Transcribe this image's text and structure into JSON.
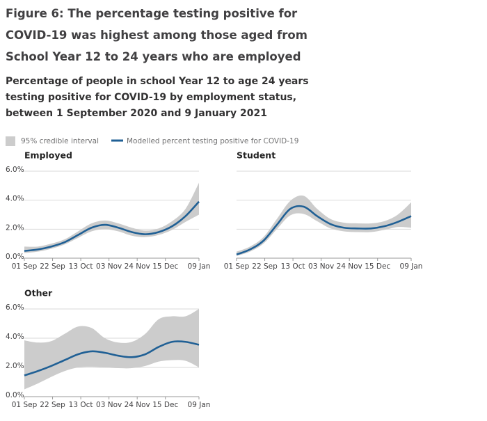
{
  "title": "Figure 6: The percentage testing positive for COVID-19 was highest among those aged from School Year 12 to 24 years who are employed",
  "subtitle": "Percentage of people in school Year 12 to age 24 years testing positive for COVID-19 by employment status, between 1 September 2020 and 9 January 2021",
  "legend": [
    {
      "name": "95% credible interval",
      "color": "#cccccc"
    },
    {
      "name": "Modelled percent testing positive for COVID-19",
      "color": "#206095"
    }
  ],
  "chart_data": [
    {
      "type": "line",
      "title": "Employed",
      "x": [
        0,
        10,
        20,
        30,
        40,
        50,
        60,
        70,
        80,
        90,
        100,
        110,
        120,
        130
      ],
      "values": [
        0.5,
        0.6,
        0.8,
        1.1,
        1.6,
        2.1,
        2.3,
        2.1,
        1.8,
        1.65,
        1.8,
        2.2,
        2.9,
        3.9
      ],
      "lower": [
        0.35,
        0.45,
        0.65,
        0.95,
        1.4,
        1.85,
        2.0,
        1.85,
        1.55,
        1.45,
        1.6,
        1.95,
        2.5,
        3.0
      ],
      "upper": [
        0.8,
        0.8,
        1.0,
        1.3,
        1.85,
        2.4,
        2.6,
        2.4,
        2.1,
        1.9,
        2.05,
        2.55,
        3.4,
        5.2
      ],
      "xlim": [
        0,
        130
      ],
      "xticks": [
        {
          "value": 0,
          "label": "01 Sep"
        },
        {
          "value": 21,
          "label": "22 Sep"
        },
        {
          "value": 42,
          "label": "13 Oct"
        },
        {
          "value": 63,
          "label": "03 Nov"
        },
        {
          "value": 84,
          "label": "24 Nov"
        },
        {
          "value": 105,
          "label": "15 Dec"
        },
        {
          "value": 130,
          "label": "09 Jan"
        }
      ],
      "ylim": [
        0,
        6
      ],
      "yticks": [
        {
          "value": 0,
          "label": "0.0%"
        },
        {
          "value": 2,
          "label": "2.0%"
        },
        {
          "value": 4,
          "label": "4.0%"
        },
        {
          "value": 6,
          "label": "6.0%"
        }
      ],
      "ytick_labels": true,
      "grid": true
    },
    {
      "type": "line",
      "title": "Student",
      "x": [
        0,
        10,
        20,
        30,
        40,
        50,
        60,
        70,
        80,
        90,
        100,
        110,
        120,
        130
      ],
      "values": [
        0.25,
        0.6,
        1.2,
        2.3,
        3.4,
        3.55,
        2.9,
        2.35,
        2.1,
        2.05,
        2.05,
        2.2,
        2.5,
        2.9
      ],
      "lower": [
        0.15,
        0.45,
        1.0,
        2.0,
        2.95,
        3.05,
        2.55,
        2.05,
        1.85,
        1.8,
        1.8,
        1.95,
        2.15,
        2.1
      ],
      "upper": [
        0.45,
        0.8,
        1.45,
        2.7,
        3.95,
        4.3,
        3.4,
        2.7,
        2.45,
        2.4,
        2.4,
        2.55,
        3.0,
        3.85
      ],
      "xlim": [
        0,
        130
      ],
      "xticks": [
        {
          "value": 0,
          "label": "01 Sep"
        },
        {
          "value": 21,
          "label": "22 Sep"
        },
        {
          "value": 42,
          "label": "13 Oct"
        },
        {
          "value": 63,
          "label": "03 Nov"
        },
        {
          "value": 84,
          "label": "24 Nov"
        },
        {
          "value": 105,
          "label": "15 Dec"
        },
        {
          "value": 130,
          "label": "09 Jan"
        }
      ],
      "ylim": [
        0,
        6
      ],
      "yticks": [
        {
          "value": 0,
          "label": "0.0%"
        },
        {
          "value": 2,
          "label": "2.0%"
        },
        {
          "value": 4,
          "label": "4.0%"
        },
        {
          "value": 6,
          "label": "6.0%"
        }
      ],
      "ytick_labels": false,
      "grid": true
    },
    {
      "type": "line",
      "title": "Other",
      "x": [
        0,
        10,
        20,
        30,
        40,
        50,
        60,
        70,
        80,
        90,
        100,
        110,
        120,
        130
      ],
      "values": [
        1.45,
        1.75,
        2.1,
        2.5,
        2.9,
        3.1,
        3.0,
        2.8,
        2.7,
        2.9,
        3.4,
        3.75,
        3.75,
        3.55
      ],
      "lower": [
        0.5,
        0.9,
        1.35,
        1.75,
        2.0,
        2.05,
        2.0,
        1.95,
        1.95,
        2.1,
        2.4,
        2.5,
        2.45,
        2.0
      ],
      "upper": [
        3.85,
        3.7,
        3.8,
        4.3,
        4.8,
        4.7,
        4.0,
        3.7,
        3.75,
        4.3,
        5.3,
        5.5,
        5.5,
        6.0
      ],
      "xlim": [
        0,
        130
      ],
      "xticks": [
        {
          "value": 0,
          "label": "01 Sep"
        },
        {
          "value": 21,
          "label": "22 Sep"
        },
        {
          "value": 42,
          "label": "13 Oct"
        },
        {
          "value": 63,
          "label": "03 Nov"
        },
        {
          "value": 84,
          "label": "24 Nov"
        },
        {
          "value": 105,
          "label": "15 Dec"
        },
        {
          "value": 130,
          "label": "09 Jan"
        }
      ],
      "ylim": [
        0,
        6
      ],
      "yticks": [
        {
          "value": 0,
          "label": "0.0%"
        },
        {
          "value": 2,
          "label": "2.0%"
        },
        {
          "value": 4,
          "label": "4.0%"
        },
        {
          "value": 6,
          "label": "6.0%"
        }
      ],
      "ytick_labels": true,
      "grid": true
    }
  ]
}
